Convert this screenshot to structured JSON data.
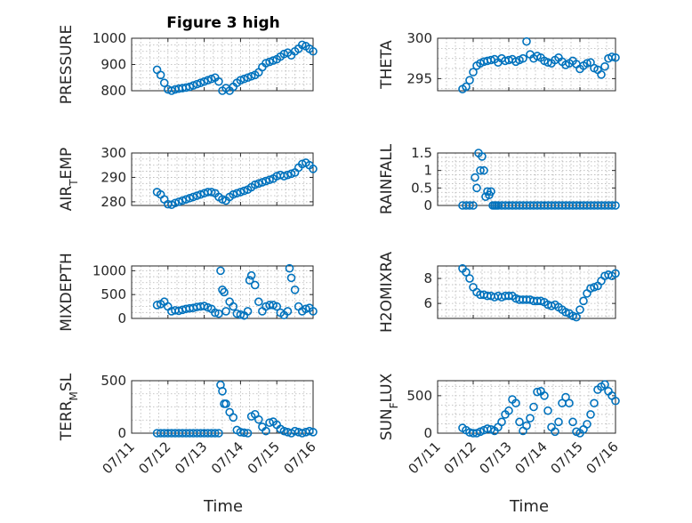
{
  "figure": {
    "title": "Figure 3 high",
    "marker_color": "#0072BD",
    "grid": true,
    "marker": "open-circle"
  },
  "x_axis": {
    "label": "Time",
    "range": [
      "07/11",
      "07/16"
    ],
    "ticks": [
      "07/11",
      "07/12",
      "07/13",
      "07/14",
      "07/15",
      "07/16"
    ]
  },
  "chart_data": [
    {
      "type": "scatter",
      "ylabel": "PRESSURE",
      "ylim": [
        800,
        1000
      ],
      "yticks": [
        {
          "v": 800,
          "t": "800"
        },
        {
          "v": 900,
          "t": "900"
        },
        {
          "v": 1000,
          "t": "1000"
        }
      ],
      "x": [
        0.7,
        0.8,
        0.9,
        1.0,
        1.1,
        1.2,
        1.3,
        1.4,
        1.5,
        1.6,
        1.7,
        1.8,
        1.9,
        2.0,
        2.1,
        2.2,
        2.3,
        2.4,
        2.5,
        2.6,
        2.7,
        2.8,
        2.9,
        3.0,
        3.1,
        3.2,
        3.3,
        3.4,
        3.5,
        3.6,
        3.7,
        3.8,
        3.9,
        4.0,
        4.1,
        4.2,
        4.3,
        4.4,
        4.5,
        4.6,
        4.7,
        4.8,
        4.9,
        5.0
      ],
      "y": [
        880,
        860,
        830,
        805,
        800,
        805,
        808,
        810,
        812,
        815,
        820,
        825,
        830,
        835,
        840,
        845,
        850,
        835,
        800,
        810,
        800,
        815,
        830,
        840,
        845,
        850,
        855,
        860,
        870,
        890,
        905,
        910,
        915,
        920,
        930,
        940,
        945,
        935,
        950,
        960,
        975,
        970,
        960,
        950
      ]
    },
    {
      "type": "scatter",
      "ylabel": "THETA",
      "ylim": [
        293.5,
        300
      ],
      "yticks": [
        {
          "v": 295,
          "t": "295"
        },
        {
          "v": 300,
          "t": "300"
        }
      ],
      "x": [
        0.7,
        0.8,
        0.9,
        1.0,
        1.1,
        1.2,
        1.3,
        1.4,
        1.5,
        1.6,
        1.7,
        1.8,
        1.9,
        2.0,
        2.1,
        2.2,
        2.3,
        2.4,
        2.5,
        2.6,
        2.7,
        2.8,
        2.9,
        3.0,
        3.1,
        3.2,
        3.3,
        3.4,
        3.5,
        3.6,
        3.7,
        3.8,
        3.9,
        4.0,
        4.1,
        4.2,
        4.3,
        4.4,
        4.5,
        4.6,
        4.7,
        4.8,
        4.9,
        5.0
      ],
      "y": [
        293.7,
        294.0,
        294.8,
        295.8,
        296.6,
        296.9,
        297.1,
        297.2,
        297.3,
        297.4,
        297.0,
        297.5,
        297.2,
        297.3,
        297.4,
        297.1,
        297.3,
        297.5,
        299.6,
        298.0,
        297.5,
        297.8,
        297.6,
        297.2,
        297.0,
        296.9,
        297.3,
        297.6,
        297.1,
        296.7,
        296.9,
        297.2,
        296.8,
        296.2,
        296.6,
        296.9,
        297.0,
        296.3,
        296.1,
        295.5,
        296.5,
        297.5,
        297.7,
        297.6
      ]
    },
    {
      "type": "scatter",
      "ylabel": "AIR_TEMP",
      "ylim": [
        278.5,
        300
      ],
      "yticks": [
        {
          "v": 280,
          "t": "280"
        },
        {
          "v": 290,
          "t": "290"
        },
        {
          "v": 300,
          "t": "300"
        }
      ],
      "x": [
        0.7,
        0.8,
        0.9,
        1.0,
        1.1,
        1.2,
        1.3,
        1.4,
        1.5,
        1.6,
        1.7,
        1.8,
        1.9,
        2.0,
        2.1,
        2.2,
        2.3,
        2.4,
        2.5,
        2.6,
        2.7,
        2.8,
        2.9,
        3.0,
        3.1,
        3.2,
        3.3,
        3.4,
        3.5,
        3.6,
        3.7,
        3.8,
        3.9,
        4.0,
        4.1,
        4.2,
        4.3,
        4.4,
        4.5,
        4.6,
        4.7,
        4.8,
        4.9,
        5.0
      ],
      "y": [
        284,
        283,
        281,
        279,
        278.8,
        279.5,
        280,
        280.5,
        281,
        281.5,
        282,
        282.5,
        283,
        283.5,
        284,
        284,
        283.5,
        282,
        281,
        280.5,
        282,
        283,
        283.5,
        284,
        284.5,
        285,
        286,
        287,
        287.5,
        288,
        288.5,
        289,
        289.5,
        290.5,
        291,
        290.5,
        291,
        291.5,
        292,
        294,
        295.5,
        296,
        295,
        293.5
      ]
    },
    {
      "type": "scatter",
      "ylabel": "RAINFALL",
      "ylim": [
        0,
        1.5
      ],
      "yticks": [
        {
          "v": 0,
          "t": "0"
        },
        {
          "v": 0.5,
          "t": "0.5"
        },
        {
          "v": 1,
          "t": "1"
        },
        {
          "v": 1.5,
          "t": "1.5"
        }
      ],
      "x": [
        0.7,
        0.8,
        0.9,
        1.0,
        1.05,
        1.1,
        1.15,
        1.2,
        1.25,
        1.3,
        1.35,
        1.4,
        1.45,
        1.5,
        1.55,
        1.6,
        1.65,
        1.7,
        1.8,
        1.9,
        2.0,
        2.1,
        2.2,
        2.3,
        2.4,
        2.5,
        2.6,
        2.7,
        2.8,
        2.9,
        3.0,
        3.1,
        3.2,
        3.3,
        3.4,
        3.5,
        3.6,
        3.7,
        3.8,
        3.9,
        4.0,
        4.1,
        4.2,
        4.3,
        4.4,
        4.5,
        4.6,
        4.7,
        4.8,
        4.9,
        5.0
      ],
      "y": [
        0,
        0,
        0,
        0,
        0.8,
        0.5,
        1.5,
        1.0,
        1.4,
        1.0,
        0.25,
        0.4,
        0.3,
        0.4,
        0,
        0,
        0,
        0,
        0,
        0,
        0,
        0,
        0,
        0,
        0,
        0,
        0,
        0,
        0,
        0,
        0,
        0,
        0,
        0,
        0,
        0,
        0,
        0,
        0,
        0,
        0,
        0,
        0,
        0,
        0,
        0,
        0,
        0,
        0,
        0,
        0
      ]
    },
    {
      "type": "scatter",
      "ylabel": "MIXDEPTH",
      "ylim": [
        0,
        1100
      ],
      "yticks": [
        {
          "v": 0,
          "t": "0"
        },
        {
          "v": 500,
          "t": "500"
        },
        {
          "v": 1000,
          "t": "1000"
        }
      ],
      "x": [
        0.7,
        0.8,
        0.9,
        1.0,
        1.1,
        1.2,
        1.3,
        1.4,
        1.5,
        1.6,
        1.7,
        1.8,
        1.9,
        2.0,
        2.1,
        2.2,
        2.3,
        2.4,
        2.45,
        2.5,
        2.55,
        2.6,
        2.7,
        2.8,
        2.9,
        3.0,
        3.1,
        3.2,
        3.25,
        3.3,
        3.4,
        3.5,
        3.6,
        3.7,
        3.8,
        3.9,
        4.0,
        4.1,
        4.2,
        4.3,
        4.35,
        4.4,
        4.5,
        4.6,
        4.7,
        4.8,
        4.9,
        5.0
      ],
      "y": [
        280,
        300,
        350,
        250,
        150,
        170,
        160,
        180,
        200,
        210,
        220,
        240,
        250,
        260,
        230,
        200,
        120,
        100,
        1000,
        600,
        550,
        150,
        350,
        250,
        100,
        80,
        60,
        150,
        800,
        900,
        700,
        350,
        150,
        250,
        280,
        280,
        250,
        120,
        70,
        150,
        1050,
        850,
        600,
        250,
        150,
        200,
        220,
        150
      ]
    },
    {
      "type": "scatter",
      "ylabel": "H2OMIXRA",
      "ylim": [
        4.8,
        9
      ],
      "yticks": [
        {
          "v": 6,
          "t": "6"
        },
        {
          "v": 8,
          "t": "8"
        }
      ],
      "x": [
        0.7,
        0.8,
        0.9,
        1.0,
        1.1,
        1.2,
        1.3,
        1.4,
        1.5,
        1.6,
        1.7,
        1.8,
        1.9,
        2.0,
        2.1,
        2.2,
        2.3,
        2.4,
        2.5,
        2.6,
        2.7,
        2.8,
        2.9,
        3.0,
        3.1,
        3.2,
        3.3,
        3.4,
        3.5,
        3.6,
        3.7,
        3.8,
        3.9,
        4.0,
        4.1,
        4.2,
        4.3,
        4.4,
        4.5,
        4.6,
        4.7,
        4.8,
        4.9,
        5.0
      ],
      "y": [
        8.8,
        8.5,
        8.0,
        7.3,
        6.9,
        6.7,
        6.7,
        6.6,
        6.6,
        6.5,
        6.6,
        6.5,
        6.6,
        6.6,
        6.6,
        6.4,
        6.3,
        6.3,
        6.3,
        6.3,
        6.2,
        6.2,
        6.2,
        6.1,
        5.9,
        5.8,
        5.9,
        5.7,
        5.5,
        5.3,
        5.2,
        5.0,
        4.9,
        5.5,
        6.2,
        6.8,
        7.2,
        7.3,
        7.4,
        7.8,
        8.2,
        8.3,
        8.2,
        8.4
      ]
    },
    {
      "type": "scatter",
      "ylabel": "TERR_MSL",
      "ylim": [
        0,
        500
      ],
      "yticks": [
        {
          "v": 0,
          "t": "0"
        },
        {
          "v": 500,
          "t": "500"
        }
      ],
      "x": [
        0.7,
        0.8,
        0.9,
        1.0,
        1.1,
        1.2,
        1.3,
        1.4,
        1.5,
        1.6,
        1.7,
        1.8,
        1.9,
        2.0,
        2.1,
        2.2,
        2.3,
        2.4,
        2.45,
        2.5,
        2.55,
        2.6,
        2.7,
        2.8,
        2.9,
        3.0,
        3.1,
        3.2,
        3.3,
        3.4,
        3.5,
        3.6,
        3.7,
        3.8,
        3.9,
        4.0,
        4.1,
        4.2,
        4.3,
        4.4,
        4.5,
        4.6,
        4.7,
        4.8,
        4.9,
        5.0
      ],
      "y": [
        0,
        0,
        0,
        0,
        0,
        0,
        0,
        0,
        0,
        0,
        0,
        0,
        0,
        0,
        0,
        0,
        0,
        0,
        460,
        400,
        280,
        280,
        200,
        150,
        30,
        10,
        5,
        0,
        160,
        180,
        130,
        60,
        20,
        100,
        110,
        80,
        40,
        20,
        10,
        0,
        20,
        10,
        0,
        10,
        20,
        10
      ]
    },
    {
      "type": "scatter",
      "ylabel": "SUN_FLUX",
      "ylim": [
        0,
        700
      ],
      "yticks": [
        {
          "v": 0,
          "t": "0"
        },
        {
          "v": 500,
          "t": "500"
        }
      ],
      "x": [
        0.7,
        0.8,
        0.9,
        1.0,
        1.1,
        1.2,
        1.3,
        1.4,
        1.5,
        1.6,
        1.7,
        1.8,
        1.9,
        2.0,
        2.1,
        2.2,
        2.3,
        2.4,
        2.5,
        2.6,
        2.7,
        2.8,
        2.9,
        3.0,
        3.1,
        3.2,
        3.3,
        3.4,
        3.5,
        3.6,
        3.7,
        3.8,
        3.9,
        4.0,
        4.1,
        4.2,
        4.3,
        4.4,
        4.5,
        4.6,
        4.7,
        4.8,
        4.9,
        5.0
      ],
      "y": [
        70,
        40,
        10,
        0,
        0,
        20,
        40,
        60,
        50,
        30,
        80,
        150,
        250,
        300,
        450,
        400,
        150,
        30,
        100,
        200,
        350,
        550,
        560,
        500,
        300,
        80,
        20,
        150,
        400,
        480,
        400,
        150,
        20,
        0,
        50,
        120,
        250,
        400,
        580,
        620,
        650,
        560,
        500,
        430
      ]
    }
  ]
}
